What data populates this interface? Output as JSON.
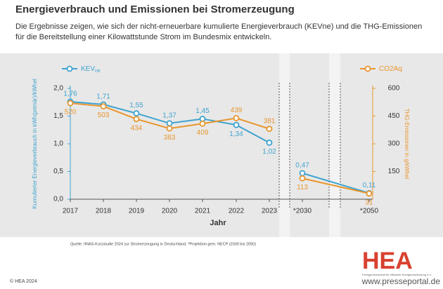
{
  "chart_data": {
    "type": "line",
    "title": "Energieverbrauch und Emissionen bei Stromerzeugung",
    "subtitle": [
      "Die Ergebnisse zeigen, wie sich der nicht-erneuerbare kumulierte Energieverbrauch (KEVne) und die THG-Emissionen",
      "für die Bereitstellung einer Kilowattstunde Strom im Bundesmix entwickeln."
    ],
    "categories": [
      "2017",
      "2018",
      "2019",
      "2020",
      "2021",
      "2022",
      "2023",
      "*2030",
      "*2050"
    ],
    "x_label": "Jahr",
    "y_label": "Kumulierter Energieverbrauch in kWh(primär)/kWhel",
    "y2_label": "THG-Emissionen in g/kWhel",
    "ylim": [
      0,
      2
    ],
    "yticks": [
      {
        "value": 0,
        "label": "0,0"
      },
      {
        "value": 0.5,
        "label": "0,5"
      },
      {
        "value": 1,
        "label": "1,0"
      },
      {
        "value": 1.5,
        "label": "1,5"
      },
      {
        "value": 2,
        "label": "2,0"
      }
    ],
    "y2lim": [
      0,
      600
    ],
    "y2ticks": [
      150,
      300,
      450,
      600
    ],
    "series": [
      {
        "name": "KEV",
        "name_subscript": "ne",
        "color": "#3fa3cf",
        "values": [
          1.76,
          1.71,
          1.55,
          1.37,
          1.45,
          1.34,
          1.02,
          0.47,
          0.11
        ],
        "value_labels": [
          "1,76",
          "1,71",
          "1,55",
          "1,37",
          "1,45",
          "1,34",
          "1,02",
          "0,47",
          "0,11"
        ]
      },
      {
        "name": "CO2Aq",
        "color": "#e8962e",
        "axis": "y2",
        "values": [
          520,
          503,
          434,
          383,
          409,
          439,
          381,
          113,
          31
        ]
      }
    ],
    "source": "Quelle: IINAS-Kurzstudie 2024 zur Stromerzeugung in Deutschland, *Projektion gem. NECP (2030 bis 2050)",
    "copyright": "© HEA 2024",
    "logo": "HEA",
    "logo_subtitle": "Fachgemeinschaft für effiziente Energieanwendung e.V.",
    "watermark": "www.presseportal.de"
  }
}
